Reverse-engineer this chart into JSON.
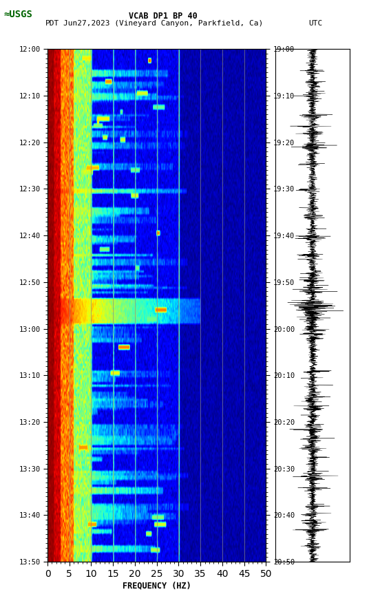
{
  "title_line1": "VCAB DP1 BP 40",
  "title_line2_pdt": "PDT   Jun27,2023 (Vineyard Canyon, Parkfield, Ca)        UTC",
  "xlabel": "FREQUENCY (HZ)",
  "freq_min": 0,
  "freq_max": 50,
  "left_yticks_labels": [
    "12:00",
    "12:10",
    "12:20",
    "12:30",
    "12:40",
    "12:50",
    "13:00",
    "13:10",
    "13:20",
    "13:30",
    "13:40",
    "13:50"
  ],
  "right_yticks_labels": [
    "19:00",
    "19:10",
    "19:20",
    "19:30",
    "19:40",
    "19:50",
    "20:00",
    "20:10",
    "20:20",
    "20:30",
    "20:40",
    "20:50"
  ],
  "freq_ticks": [
    0,
    5,
    10,
    15,
    20,
    25,
    30,
    35,
    40,
    45,
    50
  ],
  "background_color": "#ffffff",
  "spectrogram_cmap": "jet",
  "fig_width": 5.52,
  "fig_height": 8.92,
  "vertical_lines_freq": [
    5,
    10,
    15,
    20,
    25,
    30,
    35,
    40,
    45
  ],
  "n_time_bins": 220,
  "n_freq_bins": 500,
  "usgs_color": "#006400"
}
